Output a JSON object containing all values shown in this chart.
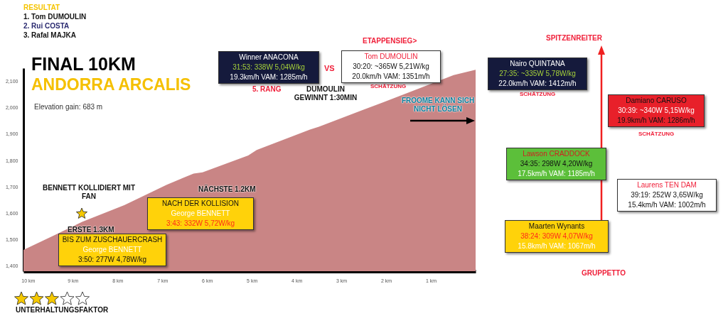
{
  "chart_data": {
    "type": "area",
    "title": "FINAL 10KM",
    "subtitle": "ANDORRA ARCALIS",
    "x": [
      10.1,
      9.44,
      8.79,
      7.84,
      6.9,
      6.3,
      6.1,
      5.08,
      4.89,
      3.7,
      3.5,
      2.06,
      0.49,
      0
    ],
    "values": [
      1461,
      1514,
      1567,
      1631,
      1708,
      1750,
      1755,
      1819,
      1840,
      1917,
      1928,
      2021,
      2124,
      2144
    ],
    "color": "#c98585",
    "xlim": [
      10.1,
      0
    ],
    "xticks": [
      {
        "value": 10,
        "label": "10 km"
      },
      {
        "value": 9,
        "label": "9 km"
      },
      {
        "value": 8,
        "label": "8 km"
      },
      {
        "value": 7,
        "label": "7 km"
      },
      {
        "value": 6,
        "label": "6 km"
      },
      {
        "value": 5,
        "label": "5 km"
      },
      {
        "value": 4,
        "label": "4 km"
      },
      {
        "value": 3,
        "label": "3 km"
      },
      {
        "value": 2,
        "label": "2 km"
      },
      {
        "value": 1,
        "label": "1 km"
      }
    ],
    "ylim": [
      1380,
      2150
    ],
    "yticks": [
      {
        "value": 1400,
        "label": "1,400"
      },
      {
        "value": 1500,
        "label": "1,500"
      },
      {
        "value": 1600,
        "label": "1,600"
      },
      {
        "value": 1700,
        "label": "1,700"
      },
      {
        "value": 1800,
        "label": "1,800"
      },
      {
        "value": 1900,
        "label": "1,900"
      },
      {
        "value": 2000,
        "label": "2,000"
      },
      {
        "value": 2100,
        "label": "2,100"
      }
    ],
    "annotations": [
      "RESULTAT",
      "1.  Tom DUMOULIN",
      "2.  Rui COSTA",
      "3.  Rafal MAJKA",
      "Elevation gain: 683 m",
      "Winner ANACONA",
      "31:53: 338W 5,04W/kg",
      "19.3km/h VAM: 1285m/h",
      "VS",
      "5. RANG",
      "DUMOULIN GEWINNT 1:30MIN",
      "ETAPPENSIEG>",
      "Tom DUMOULIN",
      "30:20: ~365W 5,21W/kg",
      "20.0km/h VAM: 1351m/h",
      "SCHÄTZUNG",
      "FROOME  KANN SICH NICHT LÖSEN",
      "Nairo QUINTANA",
      "27:35: ~335W 5,78W/kg",
      "22.0km/h VAM: 1412m/h",
      "SCHÄTZUNG",
      "SPITZENREITER",
      "Damiano CARUSO",
      "30:39: ~340W 5,15W/kg",
      "19.9km/h VAM: 1286m/h",
      "SCHÄTZUNG",
      "Lawson CRADDOCK",
      "34:35: 298W 4,20W/kg",
      "17.5km/h VAM: 1185m/h",
      "Laurens TEN DAM",
      "39:19: 252W 3,65W/kg",
      "15.4km/h VAM: 1002m/h",
      "Maarten Wynants",
      "38:24: 309W 4,07W/kg",
      "15.8km/h VAM: 1067m/h",
      "GRUPPETTO",
      "BENNETT KOLLIDIERT MIT FAN",
      "ERSTE 1.3KM",
      "BIS ZUM ZUSCHAUERCRASH",
      "George BENNETT",
      "3:50: 277W 4,78W/kg",
      "NÄCHSTE 1.2KM",
      "NACH DER KOLLISION",
      "George BENNETT",
      "3:43: 332W 5,72W/kg",
      "UNTERHALTUNGSFAKTOR"
    ]
  }
}
